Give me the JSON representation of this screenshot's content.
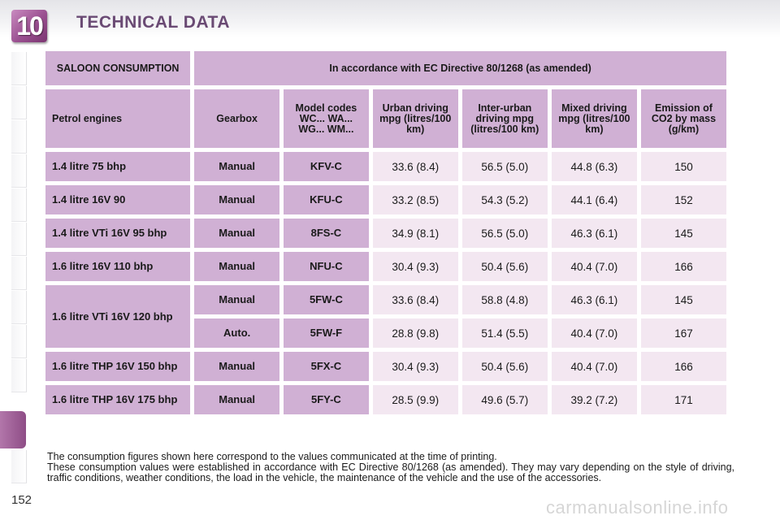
{
  "header": {
    "chapter_number": "10",
    "title": "TECHNICAL DATA"
  },
  "table": {
    "top_left": "SALOON CONSUMPTION",
    "top_span": "In accordance with EC Directive 80/1268 (as amended)",
    "columns": {
      "engine": "Petrol engines",
      "gearbox": "Gearbox",
      "model_codes": "Model codes WC... WA... WG... WM...",
      "urban": "Urban driving mpg (litres/100 km)",
      "inter_urban": "Inter-urban driving mpg (litres/100 km)",
      "mixed": "Mixed driving mpg (litres/100 km)",
      "co2": "Emission of CO2 by mass (g/km)"
    },
    "rows": [
      {
        "engine": "1.4 litre 75 bhp",
        "gearbox": "Manual",
        "code": "KFV-C",
        "urban": "33.6 (8.4)",
        "inter_urban": "56.5 (5.0)",
        "mixed": "44.8 (6.3)",
        "co2": "150"
      },
      {
        "engine": "1.4 litre 16V 90",
        "gearbox": "Manual",
        "code": "KFU-C",
        "urban": "33.2 (8.5)",
        "inter_urban": "54.3 (5.2)",
        "mixed": "44.1 (6.4)",
        "co2": "152"
      },
      {
        "engine": "1.4 litre VTi 16V 95 bhp",
        "gearbox": "Manual",
        "code": "8FS-C",
        "urban": "34.9 (8.1)",
        "inter_urban": "56.5 (5.0)",
        "mixed": "46.3 (6.1)",
        "co2": "145"
      },
      {
        "engine": "1.6 litre 16V 110 bhp",
        "gearbox": "Manual",
        "code": "NFU-C",
        "urban": "30.4 (9.3)",
        "inter_urban": "50.4 (5.6)",
        "mixed": "40.4 (7.0)",
        "co2": "166"
      },
      {
        "engine": "1.6 litre VTi 16V 120 bhp",
        "gearbox": "Manual",
        "code": "5FW-C",
        "urban": "33.6 (8.4)",
        "inter_urban": "58.8 (4.8)",
        "mixed": "46.3 (6.1)",
        "co2": "145"
      },
      {
        "engine": "",
        "gearbox": "Auto.",
        "code": "5FW-F",
        "urban": "28.8 (9.8)",
        "inter_urban": "51.4 (5.5)",
        "mixed": "40.4 (7.0)",
        "co2": "167"
      },
      {
        "engine": "1.6 litre THP 16V 150 bhp",
        "gearbox": "Manual",
        "code": "5FX-C",
        "urban": "30.4 (9.3)",
        "inter_urban": "50.4 (5.6)",
        "mixed": "40.4 (7.0)",
        "co2": "166"
      },
      {
        "engine": "1.6 litre THP 16V 175 bhp",
        "gearbox": "Manual",
        "code": "5FY-C",
        "urban": "28.5 (9.9)",
        "inter_urban": "49.6 (5.7)",
        "mixed": "39.2 (7.2)",
        "co2": "171"
      }
    ]
  },
  "footnote": {
    "line1": "The consumption figures shown here correspond to the values communicated at the time of printing.",
    "line2": "These consumption values were established in accordance with EC Directive 80/1268 (as amended). They may vary depending on the style of driving, traffic conditions, weather conditions, the load in the vehicle, the maintenance of the vehicle and the use of the accessories."
  },
  "page_number": "152",
  "watermark": "carmanualsonline.info",
  "colors": {
    "header_cell": "#d0b0d4",
    "value_cell": "#f3e7f1",
    "accent": "#9a4f90"
  }
}
